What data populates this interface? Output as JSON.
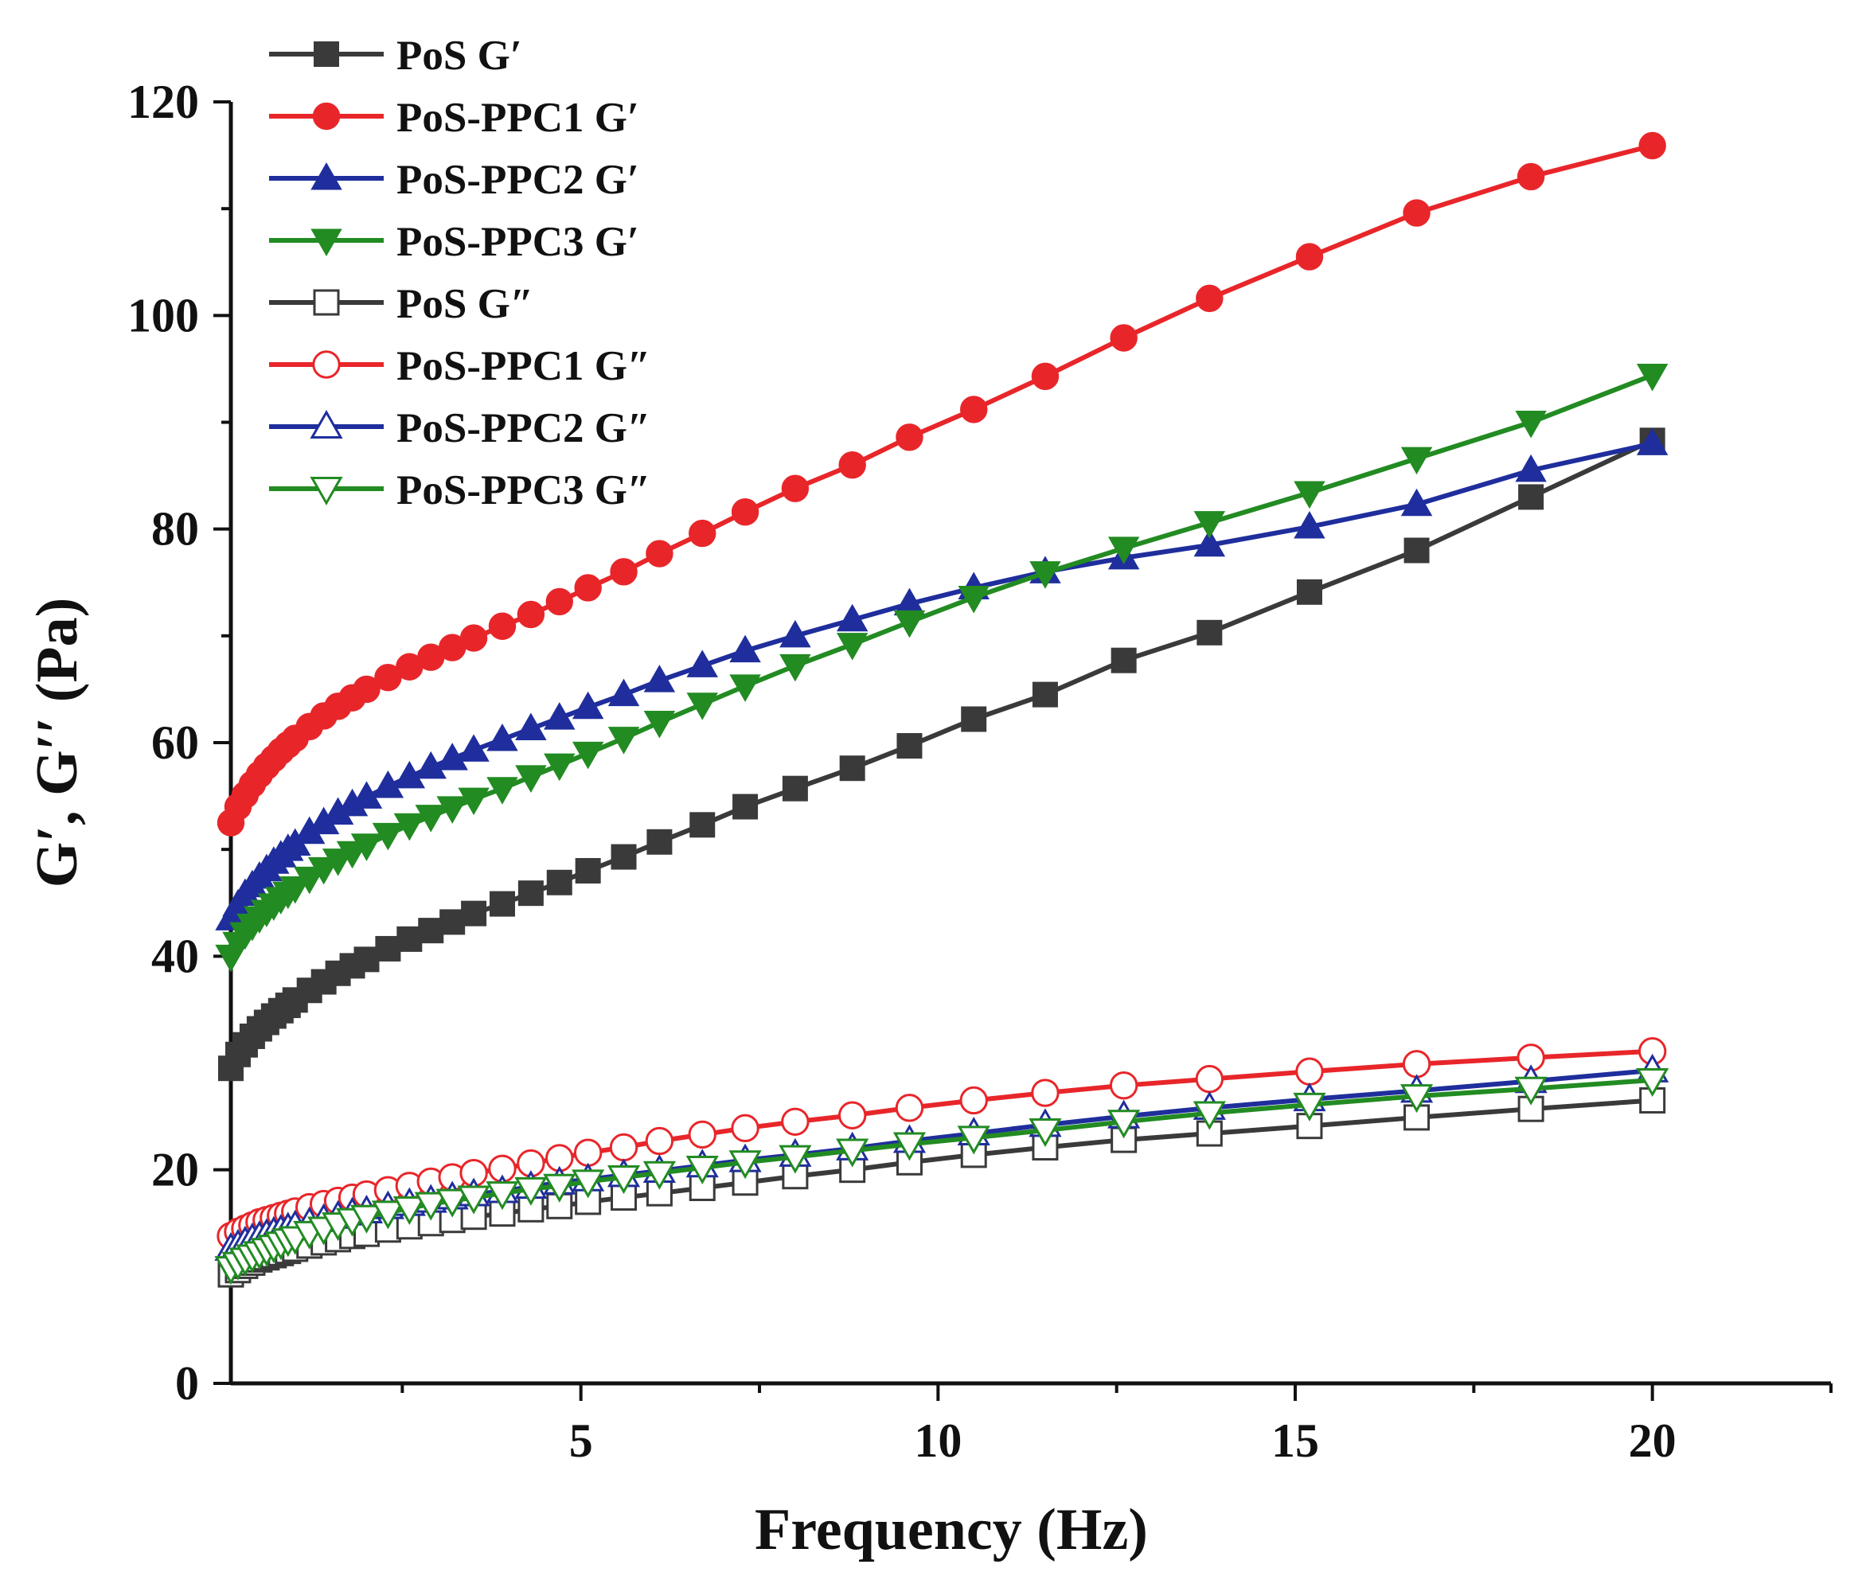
{
  "chart_data": {
    "type": "line",
    "xlabel": "Frequency (Hz)",
    "ylabel": "G′, G′′ (Pa)",
    "xlim": [
      0.1,
      22.5
    ],
    "ylim": [
      0,
      120
    ],
    "xticks": [
      5,
      10,
      15,
      20
    ],
    "yticks": [
      0,
      20,
      40,
      60,
      80,
      100,
      120
    ],
    "x_minor_ticks": [
      2.5,
      7.5,
      12.5,
      17.5,
      22.5
    ],
    "y_minor_ticks": [
      10,
      30,
      50,
      70,
      90,
      110
    ],
    "grid": false,
    "legend_position": "top-left",
    "x": [
      0.1,
      0.2,
      0.3,
      0.4,
      0.5,
      0.6,
      0.7,
      0.8,
      0.9,
      1.0,
      1.2,
      1.4,
      1.6,
      1.8,
      2.0,
      2.3,
      2.6,
      2.9,
      3.2,
      3.5,
      3.9,
      4.3,
      4.7,
      5.1,
      5.6,
      6.1,
      6.7,
      7.3,
      8.0,
      8.8,
      9.6,
      10.5,
      11.5,
      12.6,
      13.8,
      15.2,
      16.7,
      18.3,
      20.0
    ],
    "series": [
      {
        "name": "PoS G′",
        "color": "#3a3a3a",
        "marker": "square",
        "filled": true,
        "values": [
          29.5,
          30.8,
          31.7,
          32.5,
          33.2,
          33.8,
          34.4,
          34.9,
          35.4,
          35.9,
          36.8,
          37.6,
          38.4,
          39.1,
          39.7,
          40.7,
          41.6,
          42.4,
          43.2,
          44.0,
          44.9,
          45.9,
          46.9,
          48.0,
          49.3,
          50.7,
          52.3,
          54.0,
          55.7,
          57.6,
          59.7,
          62.2,
          64.5,
          67.7,
          70.3,
          74.1,
          78.0,
          83.0,
          88.3
        ]
      },
      {
        "name": "PoS-PPC1 G′",
        "color": "#e8262a",
        "marker": "circle",
        "filled": true,
        "values": [
          52.5,
          54.0,
          55.1,
          56.1,
          57.0,
          57.8,
          58.5,
          59.2,
          59.8,
          60.4,
          61.5,
          62.5,
          63.4,
          64.2,
          65.0,
          66.1,
          67.1,
          68.0,
          68.9,
          69.8,
          70.9,
          72.0,
          73.2,
          74.5,
          76.0,
          77.7,
          79.6,
          81.6,
          83.8,
          86.0,
          88.6,
          91.2,
          94.3,
          97.9,
          101.6,
          105.5,
          109.6,
          113.0,
          115.9
        ]
      },
      {
        "name": "PoS-PPC2 G′",
        "color": "#1f2e9c",
        "marker": "triangle-up",
        "filled": true,
        "values": [
          43.5,
          44.8,
          45.8,
          46.6,
          47.4,
          48.1,
          48.8,
          49.4,
          50.0,
          50.5,
          51.6,
          52.5,
          53.4,
          54.2,
          54.9,
          55.9,
          56.8,
          57.7,
          58.5,
          59.3,
          60.3,
          61.3,
          62.3,
          63.3,
          64.5,
          65.8,
          67.2,
          68.6,
          70.0,
          71.5,
          73.0,
          74.5,
          76.0,
          77.3,
          78.5,
          80.2,
          82.3,
          85.5,
          88.0
        ]
      },
      {
        "name": "PoS-PPC3 G′",
        "color": "#228b22",
        "marker": "triangle-down",
        "filled": true,
        "values": [
          40.0,
          41.2,
          42.1,
          42.9,
          43.6,
          44.2,
          44.8,
          45.4,
          45.9,
          46.4,
          47.3,
          48.2,
          49.0,
          49.7,
          50.4,
          51.4,
          52.3,
          53.1,
          53.9,
          54.7,
          55.7,
          56.8,
          57.9,
          59.0,
          60.4,
          61.9,
          63.6,
          65.3,
          67.2,
          69.2,
          71.3,
          73.6,
          75.9,
          78.2,
          80.6,
          83.4,
          86.6,
          90.0,
          94.4
        ]
      },
      {
        "name": "PoS G″",
        "color": "#3a3a3a",
        "marker": "square",
        "filled": false,
        "values": [
          10.2,
          10.6,
          11.0,
          11.3,
          11.6,
          11.8,
          12.0,
          12.2,
          12.4,
          12.6,
          12.9,
          13.2,
          13.5,
          13.8,
          14.0,
          14.4,
          14.7,
          15.0,
          15.3,
          15.6,
          15.9,
          16.3,
          16.6,
          17.0,
          17.4,
          17.8,
          18.3,
          18.8,
          19.4,
          20.0,
          20.7,
          21.4,
          22.1,
          22.8,
          23.4,
          24.1,
          24.9,
          25.7,
          26.5
        ]
      },
      {
        "name": "PoS-PPC1 G″",
        "color": "#e8262a",
        "marker": "circle",
        "filled": false,
        "values": [
          13.8,
          14.2,
          14.5,
          14.8,
          15.1,
          15.3,
          15.5,
          15.7,
          15.9,
          16.1,
          16.5,
          16.8,
          17.1,
          17.4,
          17.7,
          18.1,
          18.5,
          18.9,
          19.3,
          19.7,
          20.1,
          20.6,
          21.1,
          21.6,
          22.1,
          22.7,
          23.3,
          23.9,
          24.5,
          25.1,
          25.8,
          26.5,
          27.2,
          27.9,
          28.5,
          29.2,
          29.9,
          30.5,
          31.1
        ]
      },
      {
        "name": "PoS-PPC2 G″",
        "color": "#1f2e9c",
        "marker": "triangle-up",
        "filled": false,
        "values": [
          12.6,
          12.9,
          13.2,
          13.5,
          13.7,
          13.9,
          14.1,
          14.3,
          14.5,
          14.7,
          15.0,
          15.3,
          15.6,
          15.9,
          16.1,
          16.5,
          16.8,
          17.1,
          17.4,
          17.7,
          18.0,
          18.4,
          18.8,
          19.1,
          19.5,
          19.9,
          20.4,
          20.9,
          21.4,
          22.0,
          22.7,
          23.4,
          24.2,
          25.0,
          25.8,
          26.6,
          27.4,
          28.3,
          29.3
        ]
      },
      {
        "name": "PoS-PPC3 G″",
        "color": "#228b22",
        "marker": "triangle-down",
        "filled": false,
        "values": [
          10.8,
          11.2,
          11.6,
          11.9,
          12.2,
          12.5,
          12.8,
          13.1,
          13.4,
          13.6,
          14.1,
          14.5,
          14.9,
          15.3,
          15.6,
          16.0,
          16.4,
          16.8,
          17.1,
          17.4,
          17.8,
          18.2,
          18.5,
          18.9,
          19.3,
          19.7,
          20.2,
          20.7,
          21.2,
          21.8,
          22.4,
          23.0,
          23.7,
          24.5,
          25.3,
          26.1,
          26.9,
          27.6,
          28.4
        ]
      }
    ]
  }
}
